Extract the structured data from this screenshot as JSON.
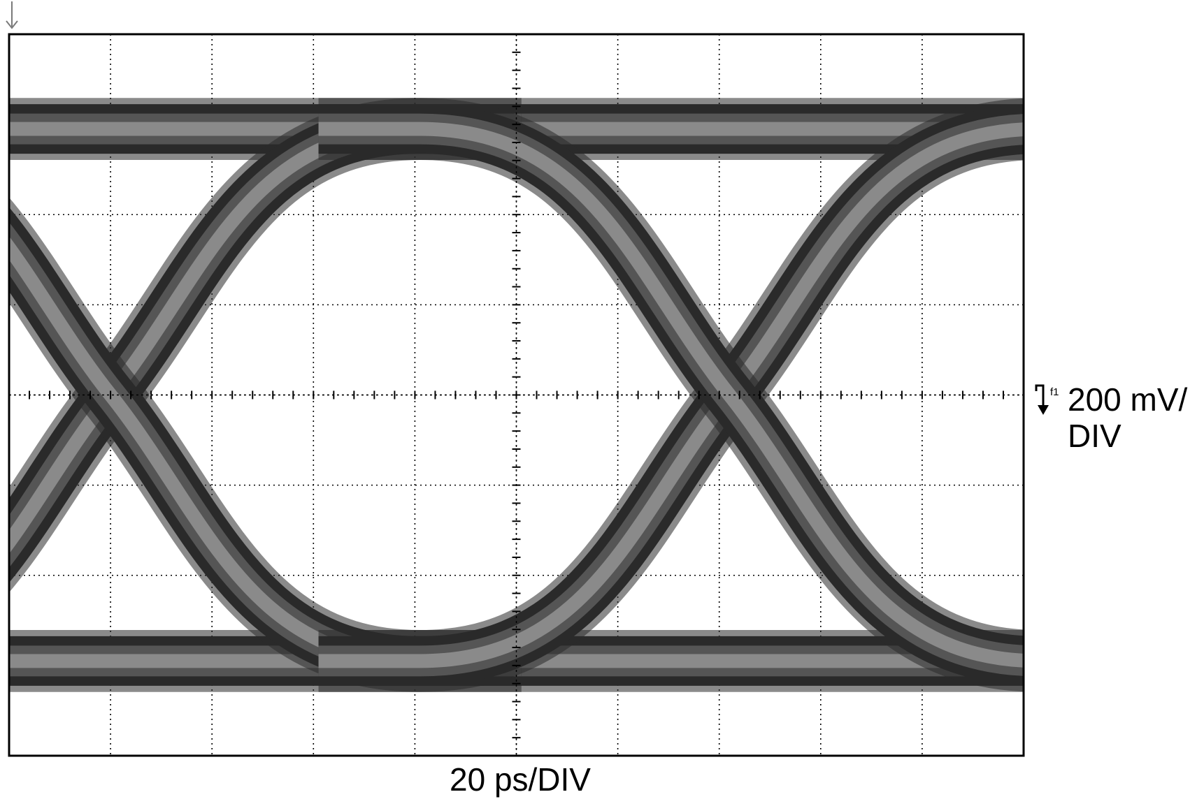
{
  "chart_data": {
    "type": "line",
    "title": "",
    "xlabel": "20 ps/DIV",
    "ylabel": "200 mV/ DIV",
    "ylabel_lines": [
      "200 mV/",
      "DIV"
    ],
    "channel_marker": "f1",
    "x_divisions": 10,
    "y_divisions": 8,
    "x_per_div_ps": 20,
    "y_per_div_mV": 200,
    "xlim": [
      0,
      200
    ],
    "ylim": [
      -800,
      800
    ],
    "grid": true,
    "legend": "none",
    "eye": {
      "high_level_mV": 590,
      "low_level_mV": -590,
      "trace_thickness_mV": 110,
      "crossings_ps": [
        20,
        142
      ],
      "crossing_level_mV": 0,
      "unit_interval_ps": 122
    },
    "series": [
      {
        "values_description": "high",
        "x": [
          0,
          200
        ],
        "y": [
          590,
          590
        ]
      },
      {
        "values_description": "low",
        "x": [
          0,
          200
        ],
        "y": [
          -590,
          -590
        ]
      },
      {
        "values_description": "rise",
        "x": [
          -41,
          20,
          81
        ],
        "y": [
          -590,
          0,
          590
        ]
      },
      {
        "values_description": "fall",
        "x": [
          -41,
          20,
          81
        ],
        "y": [
          590,
          0,
          -590
        ]
      },
      {
        "values_description": "rise",
        "x": [
          81,
          142,
          203
        ],
        "y": [
          -590,
          0,
          590
        ]
      },
      {
        "values_description": "fall",
        "x": [
          81,
          142,
          203
        ],
        "y": [
          590,
          0,
          -590
        ]
      }
    ],
    "colors": {
      "background": "#ffffff",
      "frame": "#000000",
      "grid": "#000000",
      "trace_core": "#8a8a8a",
      "trace_mid": "#555555",
      "trace_outer": "#2a2a2a"
    }
  }
}
